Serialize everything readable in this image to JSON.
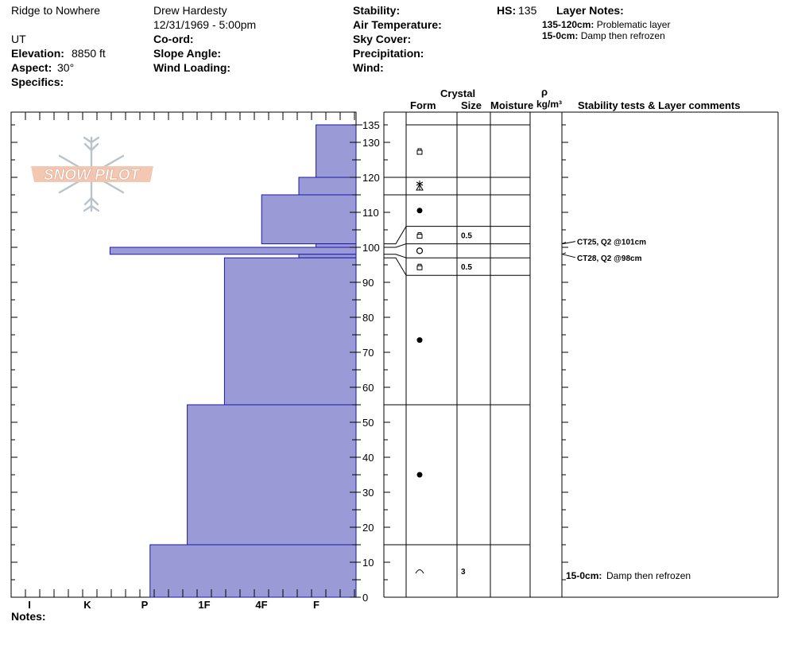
{
  "header": {
    "location": "Ridge to Nowhere",
    "state": "UT",
    "elevation_label": "Elevation:",
    "elevation_value": "8850 ft",
    "aspect_label": "Aspect:",
    "aspect_value": "30°",
    "specifics_label": "Specifics:",
    "observer": "Drew Hardesty",
    "datetime": "12/31/1969 - 5:00pm",
    "coord_label": "Co-ord:",
    "slope_label": "Slope Angle:",
    "wind_loading_label": "Wind Loading:",
    "stability_label": "Stability:",
    "air_temp_label": "Air Temperature:",
    "sky_label": "Sky Cover:",
    "precip_label": "Precipitation:",
    "wind_label": "Wind:",
    "hs_label": "HS:",
    "hs_value": "135",
    "layer_notes_label": "Layer Notes:",
    "layer_notes": [
      {
        "range": "135-120cm:",
        "text": "Problematic layer"
      },
      {
        "range": "15-0cm:",
        "text": "Damp then refrozen"
      }
    ]
  },
  "columns": {
    "crystal": "Crystal",
    "form": "Form",
    "size": "Size",
    "moisture": "Moisture",
    "rho": "ρ",
    "density_unit": "kg/m³",
    "comments": "Stability tests & Layer comments"
  },
  "logo_text": "SNOW PILOT",
  "notes_label": "Notes:",
  "colors": {
    "bar_fill": "#9a9ad7",
    "bar_stroke": "#1a1aa6",
    "logo_fill": "#f2c4ae",
    "logo_flake": "#b9c3cc"
  },
  "chart_data": {
    "type": "bar",
    "orientation": "horizontal",
    "ylabel": "",
    "ylim": [
      0,
      135
    ],
    "yticks_labeled": [
      0,
      10,
      20,
      30,
      40,
      50,
      60,
      70,
      80,
      90,
      100,
      110,
      120,
      130,
      135
    ],
    "hardness_scale": [
      "I",
      "K",
      "P",
      "1F",
      "4F",
      "F"
    ],
    "hardness_scale_note": "hardness axis runs from F (fist, right edge) to I (ice, left); value = distance of bar edge from the right edge in scale steps",
    "layers": [
      {
        "top": 135,
        "bottom": 120,
        "hardness": 0.7
      },
      {
        "top": 120,
        "bottom": 115,
        "hardness": 1.0
      },
      {
        "top": 115,
        "bottom": 101,
        "hardness": 1.65
      },
      {
        "top": 101,
        "bottom": 100,
        "hardness": 0.7
      },
      {
        "top": 100,
        "bottom": 98,
        "hardness": 4.3
      },
      {
        "top": 98,
        "bottom": 97,
        "hardness": 1.0
      },
      {
        "top": 97,
        "bottom": 55,
        "hardness": 2.3
      },
      {
        "top": 55,
        "bottom": 15,
        "hardness": 2.95
      },
      {
        "top": 15,
        "bottom": 0,
        "hardness": 3.6
      }
    ],
    "grain_rows": [
      {
        "top": 135,
        "bottom": 120,
        "form": "faceted",
        "size": ""
      },
      {
        "top": 120,
        "bottom": 115,
        "form": "surface-hoar",
        "size": ""
      },
      {
        "top": 115,
        "bottom": 106,
        "form": "rounded",
        "size": ""
      },
      {
        "top": 106,
        "bottom": 101,
        "form": "faceted",
        "size": "0.5"
      },
      {
        "top": 101,
        "bottom": 97,
        "form": "melt-freeze",
        "size": ""
      },
      {
        "top": 97,
        "bottom": 92,
        "form": "faceted",
        "size": "0.5"
      },
      {
        "top": 92,
        "bottom": 55,
        "form": "rounded",
        "size": ""
      },
      {
        "top": 55,
        "bottom": 15,
        "form": "rounded",
        "size": ""
      },
      {
        "top": 15,
        "bottom": 0,
        "form": "crust",
        "size": "3"
      }
    ],
    "stability_tests": [
      {
        "depth": 101,
        "text": "CT25, Q2 @101cm"
      },
      {
        "depth": 98,
        "text": "CT28, Q2 @98cm"
      }
    ],
    "layer_comments": [
      {
        "depth": 7,
        "label": "15-0cm:",
        "text": "Damp then refrozen"
      }
    ]
  }
}
